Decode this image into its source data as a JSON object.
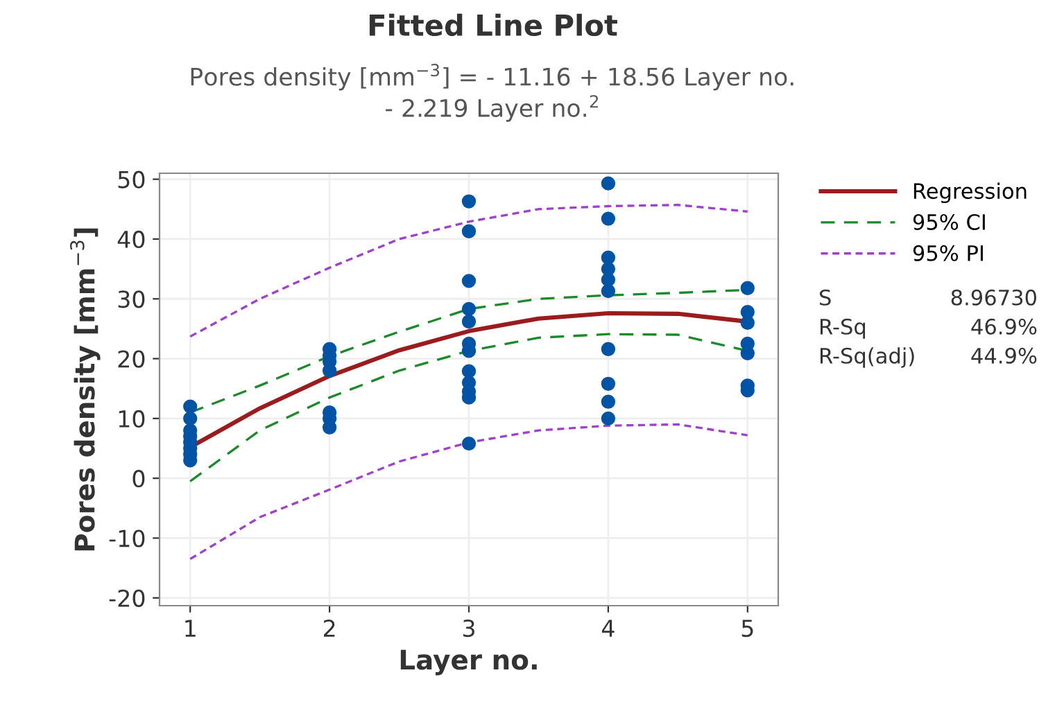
{
  "chart_data": {
    "type": "line",
    "title": "Fitted Line Plot",
    "subtitle": "Pores density [mm$^{−3}$] = - 11.16 + 18.56 Layer no.\n- 2.219 Layer no.$^{2}$",
    "xlabel": "Layer no.",
    "ylabel": "Pores density [mm$^{−3}$]",
    "xlim": [
      0.78,
      5.22
    ],
    "xticks": [
      1,
      2,
      3,
      4,
      5
    ],
    "ylim": [
      -21.3,
      51
    ],
    "yticks": [
      -20,
      -10,
      0,
      10,
      20,
      30,
      40,
      50
    ],
    "grid": true,
    "legend": "top right",
    "annotations": [
      "S\t8.96730",
      "R-Sq\t46.9%",
      "R-Sq(adj)\t44.9%"
    ],
    "series": [
      {
        "type": "scatter",
        "marker": "circle",
        "color": "#0054a6",
        "x": [
          1,
          1,
          1,
          1,
          1,
          1,
          1,
          1,
          2,
          2,
          2,
          2,
          2,
          2,
          2,
          3,
          3,
          3,
          3,
          3,
          3,
          3,
          3,
          3,
          3,
          3,
          3,
          4,
          4,
          4,
          4,
          4,
          4,
          4,
          4,
          4,
          4,
          5,
          5,
          5,
          5,
          5,
          5,
          5
        ],
        "values": [
          12,
          10,
          8,
          7,
          6,
          5,
          4,
          3,
          21.6,
          20.5,
          19.5,
          18,
          11,
          10,
          8.5,
          46.3,
          41.3,
          33,
          28.3,
          26.2,
          22.5,
          21.3,
          17.9,
          16,
          14.5,
          13.5,
          5.8,
          49.3,
          43.4,
          36.9,
          35,
          33.2,
          31.3,
          21.6,
          15.8,
          12.8,
          10,
          31.8,
          27.8,
          26,
          22.5,
          20.9,
          15.5,
          14.7
        ]
      },
      {
        "name": "Regression",
        "line_style": "solid",
        "color": "#9b1c1c",
        "x": [
          1,
          1.5,
          2,
          2.5,
          3,
          3.5,
          4,
          4.5,
          5
        ],
        "values": [
          5.2,
          11.7,
          17.1,
          21.4,
          24.6,
          26.7,
          27.6,
          27.5,
          26.2
        ]
      },
      {
        "name": "95% CI",
        "line_style": "dashed",
        "color": "#1a8a2a",
        "x": [
          1,
          1.5,
          2,
          2.5,
          3,
          3.5,
          4,
          4.5,
          5
        ],
        "values": [
          11,
          15.5,
          20.4,
          24.5,
          28.3,
          30,
          30.6,
          31,
          31.5
        ]
      },
      {
        "name": "95% PI",
        "line_style": "dotted",
        "color": "#a040d0",
        "x": [
          1,
          1.5,
          2,
          2.5,
          3,
          3.5,
          4,
          4.5,
          5
        ],
        "values": [
          23.7,
          30,
          35.2,
          40,
          42.9,
          45,
          45.5,
          45.7,
          44.6
        ]
      },
      {
        "type": "line",
        "line_style": "dashed",
        "color": "#1a8a2a",
        "x": [
          1,
          1.5,
          2,
          2.5,
          3,
          3.5,
          4,
          4.5,
          5
        ],
        "values": [
          -0.5,
          8,
          13.5,
          18,
          21.3,
          23.5,
          24.1,
          24,
          21.3
        ]
      },
      {
        "type": "line",
        "line_style": "dotted",
        "color": "#a040d0",
        "x": [
          1,
          1.5,
          2,
          2.5,
          3,
          3.5,
          4,
          4.5,
          5
        ],
        "values": [
          -13.5,
          -6.5,
          -1.9,
          2.8,
          6,
          8,
          8.8,
          9,
          7.2
        ]
      }
    ]
  }
}
